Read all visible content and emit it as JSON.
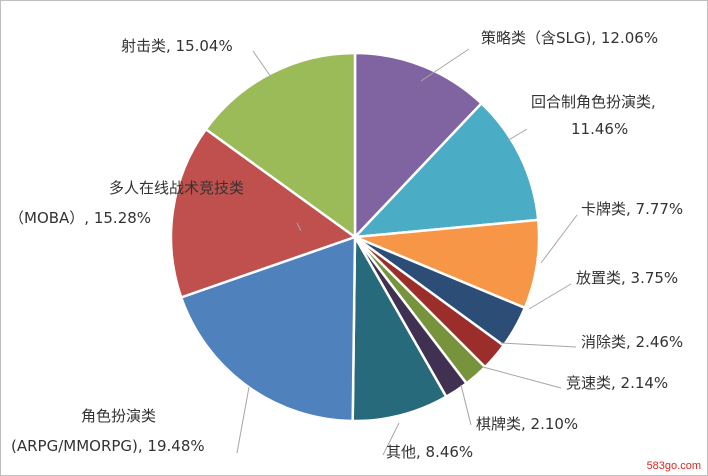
{
  "chart_data": {
    "type": "pie",
    "title": "",
    "slices": [
      {
        "label": "策略类（含SLG)",
        "value_text": "12.06%",
        "value": 12.06,
        "color": "#8064a2"
      },
      {
        "label": "回合制角色扮演类,",
        "value_text": "11.46%",
        "value": 11.46,
        "color": "#4bacc6"
      },
      {
        "label": "卡牌类",
        "value_text": "7.77%",
        "value": 7.77,
        "color": "#f79646"
      },
      {
        "label": "放置类",
        "value_text": "3.75%",
        "value": 3.75,
        "color": "#2c4d75"
      },
      {
        "label": "消除类",
        "value_text": "2.46%",
        "value": 2.46,
        "color": "#9b2d2a"
      },
      {
        "label": "竞速类",
        "value_text": "2.14%",
        "value": 2.14,
        "color": "#77933c"
      },
      {
        "label": "棋牌类",
        "value_text": "2.10%",
        "value": 2.1,
        "color": "#403152"
      },
      {
        "label": "其他",
        "value_text": "8.46%",
        "value": 8.46,
        "color": "#276a7c"
      },
      {
        "label": "角色扮演类",
        "label2": "(ARPG/MMORPG)",
        "value_text": "19.48%",
        "value": 19.48,
        "color": "#4f81bd"
      },
      {
        "label": "多人在线战术竞技类",
        "label2": "（MOBA）",
        "value_text": "15.28%",
        "value": 15.28,
        "color": "#c0504d"
      },
      {
        "label": "射击类",
        "value_text": "15.04%",
        "value": 15.04,
        "color": "#9bbb59"
      }
    ]
  },
  "watermark": "583go.com"
}
